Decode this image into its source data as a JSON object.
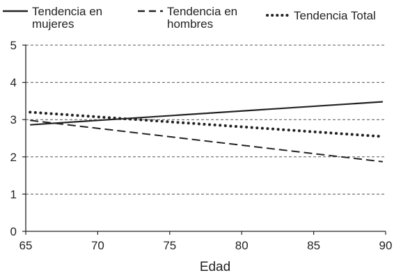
{
  "chart_data": {
    "type": "line",
    "xlabel": "Edad",
    "ylabel": "",
    "xlim": [
      65,
      90
    ],
    "ylim": [
      0,
      5
    ],
    "x_ticks": [
      "65",
      "70",
      "75",
      "80",
      "85",
      "90"
    ],
    "y_ticks": [
      "0",
      "1",
      "2",
      "3",
      "4",
      "5"
    ],
    "grid": "horizontal dashed",
    "legend_position": "top",
    "series": [
      {
        "name": "Tendencia en mujeres",
        "style": "solid",
        "color": "#222222",
        "points": [
          [
            65.3,
            2.86
          ],
          [
            89.8,
            3.48
          ]
        ]
      },
      {
        "name": "Tendencia en hombres",
        "style": "dashed",
        "color": "#222222",
        "points": [
          [
            65.3,
            2.98
          ],
          [
            89.8,
            1.87
          ]
        ]
      },
      {
        "name": "Tendencia Total",
        "style": "dotted",
        "color": "#222222",
        "points": [
          [
            65.3,
            3.2
          ],
          [
            89.6,
            2.55
          ]
        ]
      }
    ]
  }
}
